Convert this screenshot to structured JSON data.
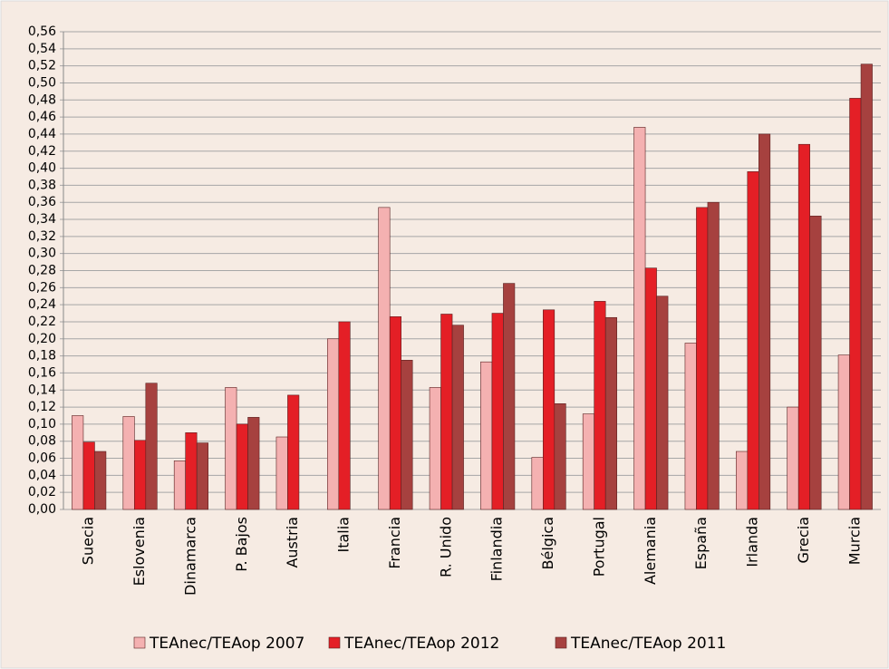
{
  "chart_data": {
    "type": "bar",
    "categories": [
      "Suecia",
      "Eslovenia",
      "Dinamarca",
      "P. Bajos",
      "Austria",
      "Italia",
      "Francia",
      "R. Unido",
      "Finlandia",
      "Bélgica",
      "Portugal",
      "Alemania",
      "España",
      "Irlanda",
      "Grecia",
      "Murcia"
    ],
    "series": [
      {
        "name": "TEAnec/TEAop 2007",
        "color": "#f4b1b1",
        "values": [
          0.11,
          0.109,
          0.057,
          0.143,
          0.085,
          0.2,
          0.354,
          0.143,
          0.173,
          0.061,
          0.112,
          0.448,
          0.195,
          0.068,
          0.12,
          0.181
        ]
      },
      {
        "name": "TEAnec/TEAop 2012",
        "color": "#e41f26",
        "values": [
          0.079,
          0.081,
          0.09,
          0.1,
          0.134,
          0.22,
          0.226,
          0.229,
          0.23,
          0.234,
          0.244,
          0.283,
          0.354,
          0.396,
          0.428,
          0.482
        ]
      },
      {
        "name": "TEAnec/TEAop 2011",
        "color": "#a6413f",
        "values": [
          0.068,
          0.148,
          0.078,
          0.108,
          null,
          null,
          0.175,
          0.216,
          0.265,
          0.124,
          0.225,
          0.25,
          0.36,
          0.44,
          0.344,
          0.522
        ]
      }
    ],
    "ylim": [
      0,
      0.56
    ],
    "yticks": [
      {
        "value": 0,
        "label": "0,00"
      },
      {
        "value": 0.02,
        "label": "0,02"
      },
      {
        "value": 0.04,
        "label": "0,04"
      },
      {
        "value": 0.06,
        "label": "0,06"
      },
      {
        "value": 0.08,
        "label": "0,08"
      },
      {
        "value": 0.1,
        "label": "0,10"
      },
      {
        "value": 0.12,
        "label": "0,12"
      },
      {
        "value": 0.14,
        "label": "0,14"
      },
      {
        "value": 0.16,
        "label": "0,16"
      },
      {
        "value": 0.18,
        "label": "0,18"
      },
      {
        "value": 0.2,
        "label": "0,20"
      },
      {
        "value": 0.22,
        "label": "0,22"
      },
      {
        "value": 0.24,
        "label": "0,24"
      },
      {
        "value": 0.26,
        "label": "0,26"
      },
      {
        "value": 0.28,
        "label": "0,28"
      },
      {
        "value": 0.3,
        "label": "0,30"
      },
      {
        "value": 0.32,
        "label": "0,32"
      },
      {
        "value": 0.34,
        "label": "0,34"
      },
      {
        "value": 0.36,
        "label": "0,36"
      },
      {
        "value": 0.38,
        "label": "0,38"
      },
      {
        "value": 0.4,
        "label": "0,40"
      },
      {
        "value": 0.42,
        "label": "0,42"
      },
      {
        "value": 0.44,
        "label": "0,44"
      },
      {
        "value": 0.46,
        "label": "0,46"
      },
      {
        "value": 0.48,
        "label": "0,48"
      },
      {
        "value": 0.5,
        "label": "0,50"
      },
      {
        "value": 0.52,
        "label": "0,52"
      },
      {
        "value": 0.54,
        "label": "0,54"
      },
      {
        "value": 0.56,
        "label": "0,56"
      }
    ],
    "grid": true,
    "legend": "bottom"
  }
}
